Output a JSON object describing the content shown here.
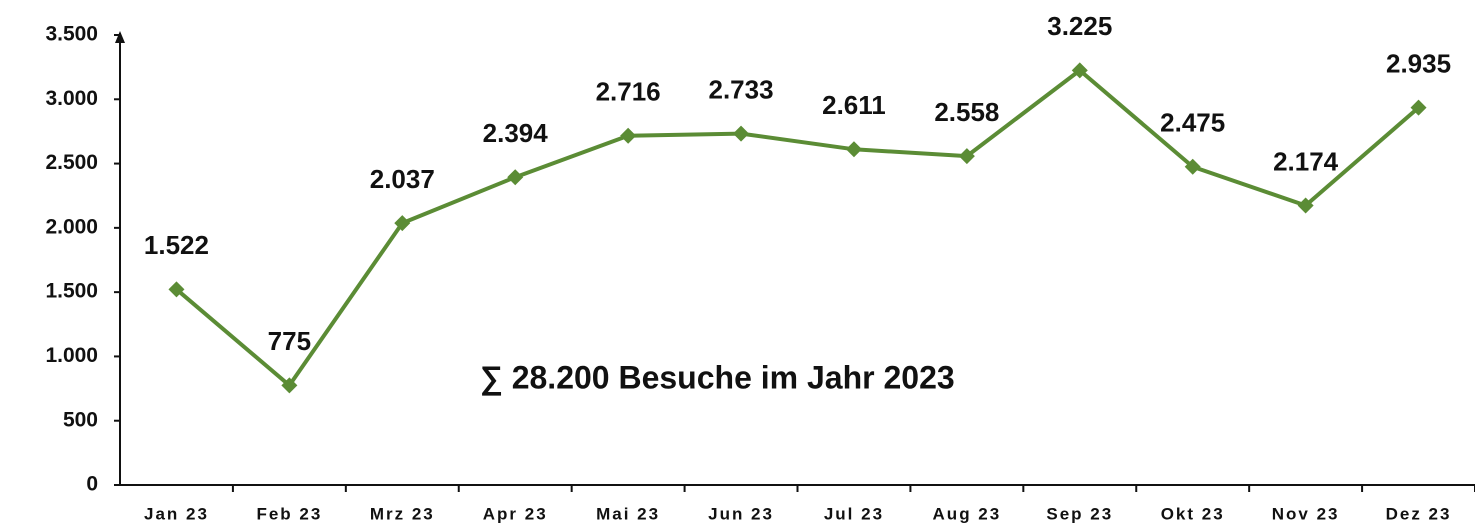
{
  "chart_data": {
    "type": "line",
    "annotation": "∑ 28.200 Besuche im Jahr 2023",
    "categories": [
      "Jan 23",
      "Feb 23",
      "Mrz 23",
      "Apr 23",
      "Mai 23",
      "Jun 23",
      "Jul 23",
      "Aug 23",
      "Sep 23",
      "Okt 23",
      "Nov 23",
      "Dez 23"
    ],
    "series": [
      {
        "name": "Besuche",
        "color": "#5b8c35",
        "values": [
          1522,
          775,
          2037,
          2394,
          2716,
          2733,
          2611,
          2558,
          3225,
          2475,
          2174,
          2935
        ],
        "value_labels": [
          "1.522",
          "775",
          "2.037",
          "2.394",
          "2.716",
          "2.733",
          "2.611",
          "2.558",
          "3.225",
          "2.475",
          "2.174",
          "2.935"
        ]
      }
    ],
    "ylim": [
      0,
      3500
    ],
    "yticks": [
      0,
      500,
      {
        "value": 1000,
        "label": "1.000"
      },
      {
        "value": 1500,
        "label": "1.500"
      },
      {
        "value": 2000,
        "label": "2.000"
      },
      {
        "value": 2500,
        "label": "2.500"
      },
      {
        "value": 3000,
        "label": "3.000"
      },
      {
        "value": 3500,
        "label": "3.500"
      }
    ],
    "grid": false
  }
}
